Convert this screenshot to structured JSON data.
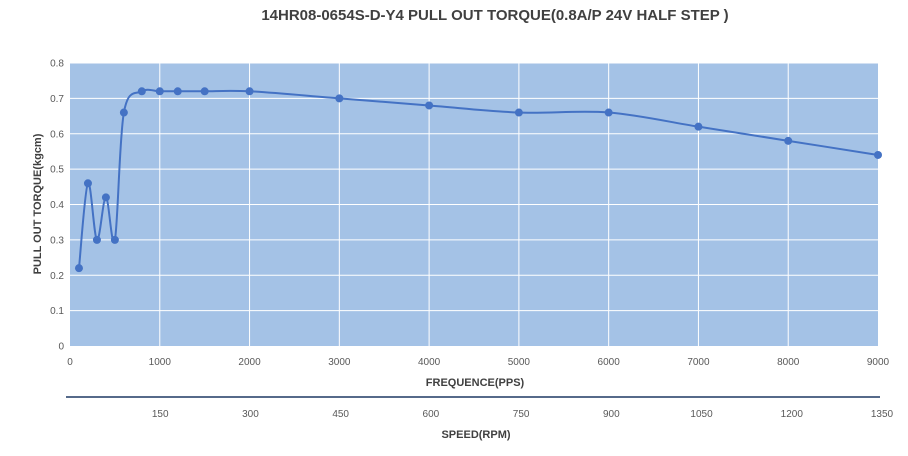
{
  "chart_data": {
    "type": "line",
    "title": "14HR08-0654S-D-Y4    PULL OUT TORQUE(0.8A/P 24V   HALF STEP )",
    "xlabel": "FREQUENCE(PPS)",
    "ylabel": "PULL OUT TORQUE(kgcm)",
    "secondary_xlabel": "SPEED(RPM)",
    "xlim": [
      0,
      9000
    ],
    "ylim": [
      0,
      0.8
    ],
    "x_ticks": [
      0,
      1000,
      2000,
      3000,
      4000,
      5000,
      6000,
      7000,
      8000,
      9000
    ],
    "y_ticks": [
      0,
      0.1,
      0.2,
      0.3,
      0.4,
      0.5,
      0.6,
      0.7,
      0.8
    ],
    "secondary_x_ticks": [
      150,
      300,
      450,
      600,
      750,
      900,
      1050,
      1200,
      1350
    ],
    "grid": true,
    "colors": {
      "plot_bg": "#a4c2e6",
      "line": "#4472c4",
      "grid": "#ffffff"
    },
    "series": [
      {
        "x": [
          100,
          200,
          300,
          400,
          500,
          600,
          800,
          1000,
          1200,
          1500,
          2000,
          3000,
          4000,
          5000,
          6000,
          7000,
          8000,
          9000
        ],
        "y": [
          0.22,
          0.46,
          0.3,
          0.42,
          0.3,
          0.66,
          0.72,
          0.72,
          0.72,
          0.72,
          0.72,
          0.7,
          0.68,
          0.66,
          0.66,
          0.62,
          0.58,
          0.54
        ]
      }
    ]
  }
}
